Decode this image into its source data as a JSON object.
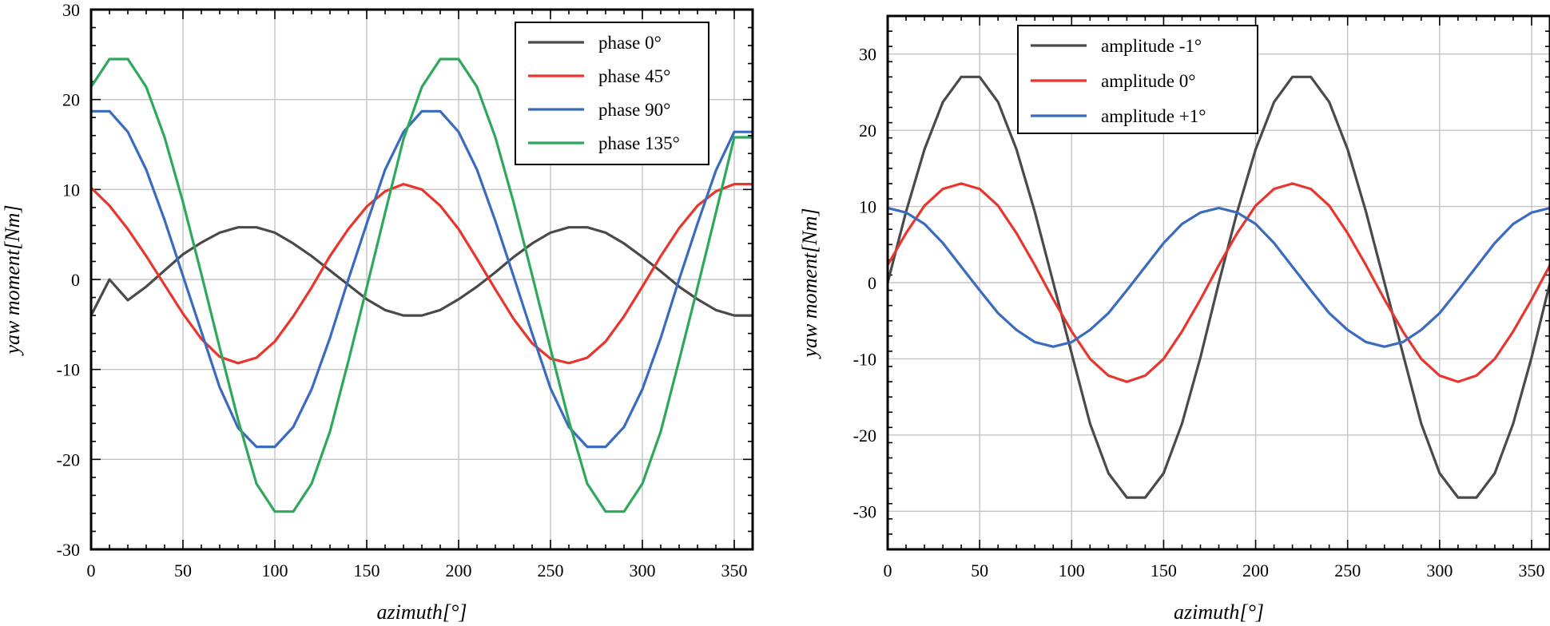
{
  "chart_data": [
    {
      "type": "line",
      "xlabel": "azimuth[°]",
      "ylabel": "yaw moment[Nm]",
      "xlim": [
        0,
        360
      ],
      "ylim": [
        -30,
        30
      ],
      "xticks": [
        0,
        50,
        100,
        150,
        200,
        250,
        300,
        350
      ],
      "yticks": [
        -30,
        -20,
        -10,
        0,
        10,
        20,
        30
      ],
      "grid": true,
      "legend_position": "top-right",
      "x": [
        0,
        10,
        20,
        30,
        40,
        50,
        60,
        70,
        80,
        90,
        100,
        110,
        120,
        130,
        140,
        150,
        160,
        170,
        180,
        190,
        200,
        210,
        220,
        230,
        240,
        250,
        260,
        270,
        280,
        290,
        300,
        310,
        320,
        330,
        340,
        350,
        360
      ],
      "series": [
        {
          "name": "phase 0°",
          "color": "#4a4a4a",
          "values": [
            -4.0,
            0.0,
            -2.3,
            -0.8,
            1.0,
            2.8,
            4.1,
            5.2,
            5.8,
            5.8,
            5.2,
            4.0,
            2.6,
            1.0,
            -0.6,
            -2.2,
            -3.4,
            -4.0,
            -4.0,
            -3.4,
            -2.2,
            -0.8,
            0.8,
            2.5,
            4.0,
            5.2,
            5.8,
            5.8,
            5.2,
            4.0,
            2.5,
            0.9,
            -0.8,
            -2.2,
            -3.4,
            -4.0,
            -4.0
          ]
        },
        {
          "name": "phase 45°",
          "color": "#e8352d",
          "values": [
            10.2,
            8.2,
            5.6,
            2.6,
            -0.6,
            -3.8,
            -6.6,
            -8.6,
            -9.3,
            -8.7,
            -6.9,
            -4.1,
            -0.9,
            2.6,
            5.6,
            8.1,
            9.8,
            10.6,
            10.0,
            8.2,
            5.6,
            2.3,
            -1.1,
            -4.4,
            -7.1,
            -8.8,
            -9.3,
            -8.7,
            -6.9,
            -4.1,
            -0.8,
            2.6,
            5.7,
            8.2,
            9.8,
            10.6,
            10.6
          ]
        },
        {
          "name": "phase 90°",
          "color": "#3a6bbf",
          "values": [
            18.7,
            18.7,
            16.4,
            12.2,
            6.6,
            0.4,
            -5.8,
            -12.0,
            -16.5,
            -18.6,
            -18.6,
            -16.4,
            -12.2,
            -6.5,
            0.0,
            6.2,
            12.2,
            16.4,
            18.7,
            18.7,
            16.4,
            12.2,
            6.5,
            0.3,
            -6.0,
            -12.1,
            -16.4,
            -18.6,
            -18.6,
            -16.4,
            -12.2,
            -6.5,
            0.0,
            6.2,
            12.1,
            16.4,
            16.4
          ]
        },
        {
          "name": "phase 135°",
          "color": "#2ea85a",
          "values": [
            21.4,
            24.5,
            24.5,
            21.4,
            15.8,
            8.6,
            0.6,
            -7.6,
            -15.6,
            -22.7,
            -25.8,
            -25.8,
            -22.7,
            -16.9,
            -9.1,
            -0.9,
            7.4,
            15.6,
            21.4,
            24.5,
            24.5,
            21.4,
            15.8,
            8.5,
            0.5,
            -7.7,
            -15.7,
            -22.7,
            -25.8,
            -25.8,
            -22.7,
            -16.9,
            -9.0,
            -0.9,
            7.4,
            15.8,
            15.8
          ]
        }
      ]
    },
    {
      "type": "line",
      "xlabel": "azimuth[°]",
      "ylabel": "yaw moment[Nm]",
      "xlim": [
        0,
        360
      ],
      "ylim": [
        -35,
        35
      ],
      "xticks": [
        0,
        50,
        100,
        150,
        200,
        250,
        300,
        350
      ],
      "yticks": [
        -30,
        -20,
        -10,
        0,
        10,
        20,
        30
      ],
      "grid": true,
      "legend_position": "top-left",
      "x": [
        0,
        10,
        20,
        30,
        40,
        50,
        60,
        70,
        80,
        90,
        100,
        110,
        120,
        130,
        140,
        150,
        160,
        170,
        180,
        190,
        200,
        210,
        220,
        230,
        240,
        250,
        260,
        270,
        280,
        290,
        300,
        310,
        320,
        330,
        340,
        350,
        360
      ],
      "series": [
        {
          "name": "amplitude -1°",
          "color": "#4a4a4a",
          "values": [
            0.0,
            9.3,
            17.5,
            23.7,
            27.0,
            27.0,
            23.7,
            17.5,
            9.3,
            0.0,
            -9.3,
            -18.5,
            -25.0,
            -28.2,
            -28.2,
            -25.0,
            -18.5,
            -9.8,
            0.0,
            9.3,
            17.5,
            23.7,
            27.0,
            27.0,
            23.7,
            17.5,
            9.3,
            0.0,
            -9.3,
            -18.5,
            -25.0,
            -28.2,
            -28.2,
            -25.0,
            -18.5,
            -9.8,
            0.0
          ]
        },
        {
          "name": "amplitude 0°",
          "color": "#e8352d",
          "values": [
            2.3,
            6.5,
            10.1,
            12.3,
            13.0,
            12.3,
            10.1,
            6.5,
            2.3,
            -2.2,
            -6.4,
            -10.0,
            -12.2,
            -13.0,
            -12.2,
            -10.0,
            -6.4,
            -2.2,
            2.3,
            6.5,
            10.1,
            12.3,
            13.0,
            12.3,
            10.1,
            6.5,
            2.3,
            -2.2,
            -6.4,
            -10.0,
            -12.2,
            -13.0,
            -12.2,
            -10.0,
            -6.4,
            -2.2,
            2.3
          ]
        },
        {
          "name": "amplitude +1°",
          "color": "#3a6bbf",
          "values": [
            9.8,
            9.2,
            7.7,
            5.2,
            2.1,
            -1.0,
            -4.0,
            -6.2,
            -7.8,
            -8.4,
            -7.8,
            -6.2,
            -4.0,
            -1.0,
            2.1,
            5.2,
            7.7,
            9.2,
            9.8,
            9.2,
            7.7,
            5.2,
            2.1,
            -1.0,
            -4.0,
            -6.2,
            -7.8,
            -8.4,
            -7.8,
            -6.2,
            -4.0,
            -1.0,
            2.1,
            5.2,
            7.7,
            9.2,
            9.8
          ]
        }
      ]
    }
  ]
}
